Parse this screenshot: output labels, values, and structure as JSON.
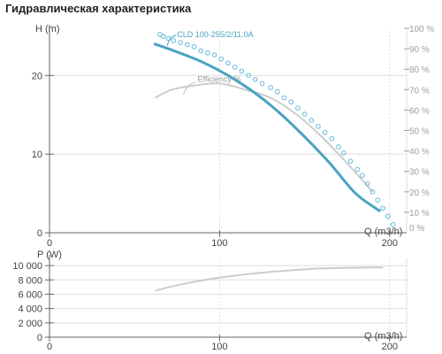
{
  "page_title": "Гидравлическая характеристика",
  "colors": {
    "pump_curve": "#4aa3c2",
    "efficiency_curve": "#cccccc",
    "percent_dots": "#62b9d8",
    "power_curve": "#cccccc",
    "grid": "#dddddd",
    "axis": "#666666",
    "label": "#444444",
    "right_axis": "#9aa0a6"
  },
  "chart_data": [
    {
      "type": "line",
      "xlabel": "Q (m3/h)",
      "ylabel": "H (m)",
      "xlim": [
        0,
        210
      ],
      "ylim": [
        0,
        26
      ],
      "x_ticks": [
        {
          "v": 0,
          "label": "0"
        },
        {
          "v": 100,
          "label": "100"
        },
        {
          "v": 200,
          "label": "200"
        }
      ],
      "y_ticks": [
        {
          "v": 0,
          "label": "0"
        },
        {
          "v": 10,
          "label": "10"
        },
        {
          "v": 20,
          "label": "20"
        }
      ],
      "y2_range": [
        0,
        100
      ],
      "y2_ticks": [
        {
          "v": 10,
          "label": "10 %"
        },
        {
          "v": 20,
          "label": "20 %"
        },
        {
          "v": 30,
          "label": "30 %"
        },
        {
          "v": 40,
          "label": "40 %"
        },
        {
          "v": 50,
          "label": "50 %"
        },
        {
          "v": 60,
          "label": "60 %"
        },
        {
          "v": 70,
          "label": "70 %"
        },
        {
          "v": 80,
          "label": "80 %"
        },
        {
          "v": 90,
          "label": "90 %"
        },
        {
          "v": 100,
          "label": "100 %"
        }
      ],
      "bottom_right_label": "0 %",
      "series": [
        {
          "name": "CLD 100-255/2/11.0A",
          "role": "pump",
          "x": [
            62,
            75,
            90,
            105,
            120,
            135,
            150,
            165,
            180,
            194
          ],
          "y": [
            24.0,
            23.0,
            21.7,
            20.0,
            17.9,
            15.3,
            12.2,
            8.8,
            5.0,
            2.8
          ]
        },
        {
          "name": "Efficiency %",
          "role": "efficiency",
          "axis": "right",
          "x": [
            62,
            72,
            85,
            100,
            115,
            130,
            145,
            160,
            175,
            190
          ],
          "y": [
            66,
            70,
            72,
            73,
            70,
            66,
            58,
            47,
            34,
            20
          ]
        },
        {
          "role": "percent_dots",
          "axis": "right",
          "x": [
            65,
            67,
            70,
            73,
            77,
            81,
            85,
            89,
            93,
            97,
            101,
            105,
            109,
            113,
            117,
            121,
            125,
            130,
            134,
            138,
            142,
            146,
            150,
            154,
            158,
            162,
            166,
            170,
            173,
            177,
            181,
            184,
            187,
            190,
            193,
            196,
            199,
            202
          ],
          "y": [
            97,
            96,
            95,
            94,
            93,
            92,
            91,
            89,
            88,
            87,
            85,
            83,
            81,
            79,
            77,
            75,
            73,
            71,
            69,
            66,
            64,
            61,
            58,
            55,
            52,
            49,
            46,
            42,
            39,
            35,
            31,
            28,
            24,
            20,
            16,
            12,
            8,
            4
          ]
        }
      ]
    },
    {
      "type": "line",
      "xlabel": "Q (m3/h)",
      "ylabel": "P (W)",
      "xlim": [
        0,
        210
      ],
      "ylim": [
        0,
        11000
      ],
      "x_ticks": [
        {
          "v": 0,
          "label": "0"
        },
        {
          "v": 100,
          "label": "100"
        },
        {
          "v": 200,
          "label": "200"
        }
      ],
      "y_ticks": [
        {
          "v": 0,
          "label": "0"
        },
        {
          "v": 2000,
          "label": "2 000"
        },
        {
          "v": 4000,
          "label": "4 000"
        },
        {
          "v": 6000,
          "label": "6 000"
        },
        {
          "v": 8000,
          "label": "8 000"
        },
        {
          "v": 10000,
          "label": "10 000"
        }
      ],
      "series": [
        {
          "role": "power",
          "x": [
            62,
            80,
            100,
            120,
            140,
            160,
            180,
            196
          ],
          "y": [
            6500,
            7500,
            8300,
            8900,
            9300,
            9600,
            9700,
            9750
          ]
        }
      ]
    }
  ]
}
